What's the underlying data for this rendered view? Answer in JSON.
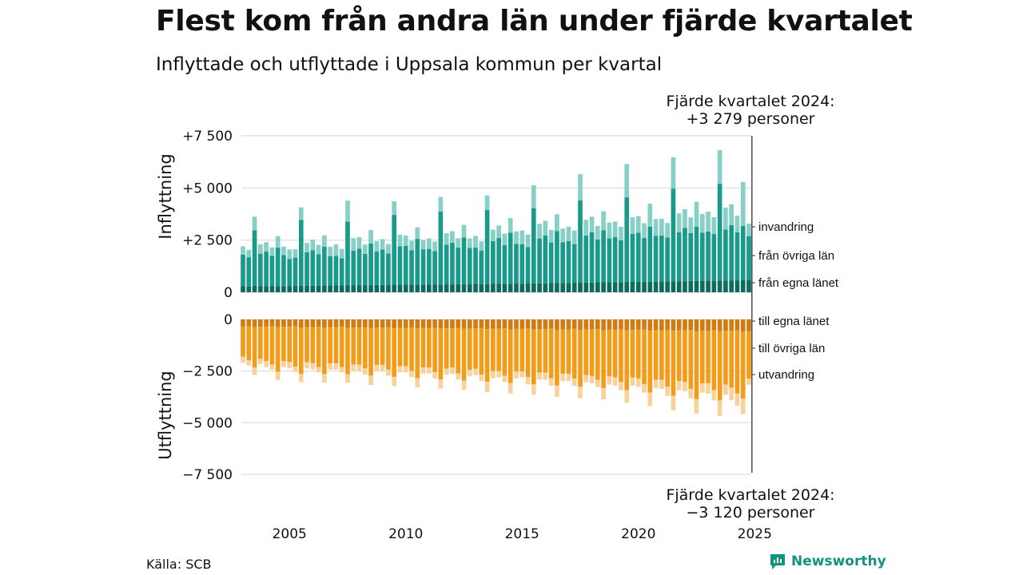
{
  "title": "Flest kom från andra län under fjärde kvartalet",
  "subtitle": "Inflyttade och utflyttade i Uppsala kommun per kvartal",
  "source": "Källa: SCB",
  "brand": "Newsworthy",
  "colors": {
    "in_own": "#0d6b5f",
    "in_other": "#1a9a8a",
    "in_immig": "#86d0c8",
    "out_own": "#cf7d12",
    "out_other": "#f39c1a",
    "out_emig": "#f7d29c",
    "grid": "#dddddd",
    "brand": "#14917f"
  },
  "chart_data": {
    "type": "bar",
    "stacked": true,
    "x_start": "2003Q1",
    "x_end": "2024Q4",
    "frequency": "quarter",
    "x_ticks": [
      "2005",
      "2010",
      "2015",
      "2020",
      "2025"
    ],
    "top_panel": {
      "label": "Inflyttning",
      "ylim": [
        0,
        7500
      ],
      "y_ticks": [
        "+7 500",
        "+5 000",
        "+2 500",
        "0"
      ],
      "series": [
        {
          "name": "från egna länet",
          "values": [
            300,
            280,
            320,
            300,
            300,
            300,
            290,
            290,
            300,
            310,
            320,
            320,
            320,
            320,
            330,
            330,
            340,
            330,
            340,
            340,
            340,
            340,
            340,
            350,
            350,
            360,
            360,
            360,
            370,
            370,
            360,
            360,
            380,
            380,
            370,
            380,
            380,
            390,
            380,
            380,
            400,
            390,
            390,
            400,
            400,
            410,
            410,
            420,
            410,
            420,
            430,
            430,
            430,
            440,
            440,
            450,
            450,
            460,
            460,
            470,
            470,
            480,
            480,
            490,
            490,
            490,
            500,
            500,
            500,
            510,
            500,
            510,
            520,
            520,
            520,
            530,
            530,
            540,
            540,
            550,
            560,
            550,
            560,
            560,
            570,
            570,
            580,
            590
          ]
        },
        {
          "name": "från övriga län",
          "values": [
            1500,
            1400,
            2650,
            1550,
            1650,
            1450,
            1850,
            1500,
            1300,
            1350,
            3150,
            1600,
            1700,
            1500,
            1850,
            1400,
            1400,
            1300,
            3050,
            1650,
            1750,
            1500,
            2000,
            1600,
            1700,
            1500,
            3350,
            1850,
            1850,
            1650,
            2200,
            1700,
            1700,
            1600,
            3500,
            1900,
            2000,
            1750,
            2250,
            1750,
            1750,
            1600,
            3550,
            2050,
            2200,
            1850,
            2450,
            1900,
            1900,
            1750,
            3600,
            2150,
            2300,
            1950,
            2500,
            1950,
            2000,
            1850,
            3950,
            2250,
            2400,
            2050,
            2500,
            2100,
            2150,
            2000,
            4050,
            2300,
            2350,
            2100,
            2650,
            2200,
            2200,
            2100,
            4450,
            2350,
            2550,
            2300,
            2600,
            2300,
            2350,
            2250,
            4650,
            2450,
            2650,
            2300,
            2600,
            2100
          ]
        },
        {
          "name": "invandring",
          "values": [
            400,
            350,
            650,
            450,
            450,
            400,
            550,
            400,
            450,
            400,
            600,
            450,
            500,
            450,
            550,
            450,
            550,
            450,
            1000,
            600,
            550,
            450,
            650,
            500,
            500,
            450,
            650,
            550,
            500,
            450,
            550,
            450,
            500,
            450,
            700,
            550,
            550,
            450,
            600,
            450,
            550,
            450,
            700,
            550,
            600,
            550,
            700,
            600,
            650,
            600,
            1100,
            700,
            700,
            600,
            800,
            650,
            700,
            650,
            1250,
            750,
            750,
            650,
            900,
            750,
            750,
            650,
            1600,
            800,
            800,
            700,
            1100,
            800,
            800,
            700,
            1500,
            900,
            900,
            750,
            1200,
            900,
            950,
            800,
            1600,
            1050,
            1000,
            800,
            2100,
            600
          ]
        }
      ]
    },
    "bottom_panel": {
      "label": "Utflyttning",
      "ylim": [
        -7500,
        0
      ],
      "y_ticks": [
        "0",
        "−2 500",
        "−5 000",
        "−7 500"
      ],
      "series": [
        {
          "name": "till egna länet",
          "values": [
            -350,
            -330,
            -380,
            -360,
            -360,
            -340,
            -380,
            -360,
            -360,
            -340,
            -390,
            -370,
            -370,
            -350,
            -400,
            -380,
            -380,
            -360,
            -410,
            -390,
            -390,
            -370,
            -420,
            -400,
            -400,
            -380,
            -430,
            -410,
            -410,
            -390,
            -440,
            -420,
            -420,
            -400,
            -450,
            -430,
            -430,
            -410,
            -460,
            -440,
            -440,
            -420,
            -470,
            -450,
            -450,
            -430,
            -480,
            -460,
            -460,
            -440,
            -490,
            -470,
            -470,
            -450,
            -500,
            -480,
            -480,
            -460,
            -510,
            -490,
            -490,
            -470,
            -520,
            -500,
            -500,
            -480,
            -530,
            -510,
            -510,
            -490,
            -540,
            -520,
            -520,
            -500,
            -550,
            -530,
            -530,
            -510,
            -560,
            -540,
            -540,
            -520,
            -570,
            -550,
            -550,
            -530,
            -580,
            -560
          ]
        },
        {
          "name": "till övriga län",
          "values": [
            -1450,
            -1650,
            -1950,
            -1550,
            -1650,
            -1850,
            -2150,
            -1650,
            -1700,
            -1950,
            -2250,
            -1700,
            -1750,
            -1950,
            -2250,
            -1750,
            -1750,
            -1950,
            -2250,
            -1800,
            -1800,
            -2000,
            -2300,
            -1800,
            -1800,
            -2050,
            -2350,
            -1850,
            -1850,
            -2100,
            -2400,
            -1900,
            -1900,
            -2150,
            -2450,
            -1950,
            -1900,
            -2200,
            -2500,
            -2000,
            -1950,
            -2250,
            -2550,
            -2050,
            -2050,
            -2300,
            -2600,
            -2050,
            -2050,
            -2350,
            -2650,
            -2100,
            -2100,
            -2400,
            -2700,
            -2150,
            -2150,
            -2400,
            -2750,
            -2200,
            -2250,
            -2450,
            -2800,
            -2250,
            -2300,
            -2550,
            -2900,
            -2300,
            -2350,
            -2650,
            -3000,
            -2400,
            -2400,
            -2750,
            -3150,
            -2450,
            -2500,
            -2850,
            -3300,
            -2550,
            -2550,
            -2900,
            -3350,
            -2600,
            -2750,
            -3050,
            -3250,
            -2300
          ]
        },
        {
          "name": "utvandring",
          "values": [
            -300,
            -250,
            -350,
            -250,
            -300,
            -250,
            -400,
            -300,
            -300,
            -250,
            -400,
            -300,
            -300,
            -250,
            -400,
            -300,
            -300,
            -250,
            -400,
            -300,
            -300,
            -300,
            -450,
            -300,
            -300,
            -300,
            -450,
            -300,
            -300,
            -300,
            -450,
            -300,
            -300,
            -300,
            -450,
            -300,
            -300,
            -300,
            -450,
            -300,
            -300,
            -300,
            -500,
            -350,
            -300,
            -300,
            -500,
            -350,
            -300,
            -350,
            -500,
            -350,
            -350,
            -350,
            -550,
            -350,
            -350,
            -350,
            -550,
            -350,
            -350,
            -350,
            -550,
            -400,
            -400,
            -400,
            -600,
            -400,
            -400,
            -400,
            -650,
            -400,
            -450,
            -450,
            -700,
            -450,
            -450,
            -450,
            -700,
            -450,
            -500,
            -500,
            -750,
            -500,
            -600,
            -600,
            -750,
            -300
          ]
        }
      ]
    },
    "annotations": [
      {
        "text": "Fjärde kvartalet 2024:",
        "value_text": "+3 279 personer"
      },
      {
        "text": "Fjärde kvartalet 2024:",
        "value_text": "−3 120 personer"
      }
    ],
    "grid": true,
    "legend": "inline-right"
  }
}
